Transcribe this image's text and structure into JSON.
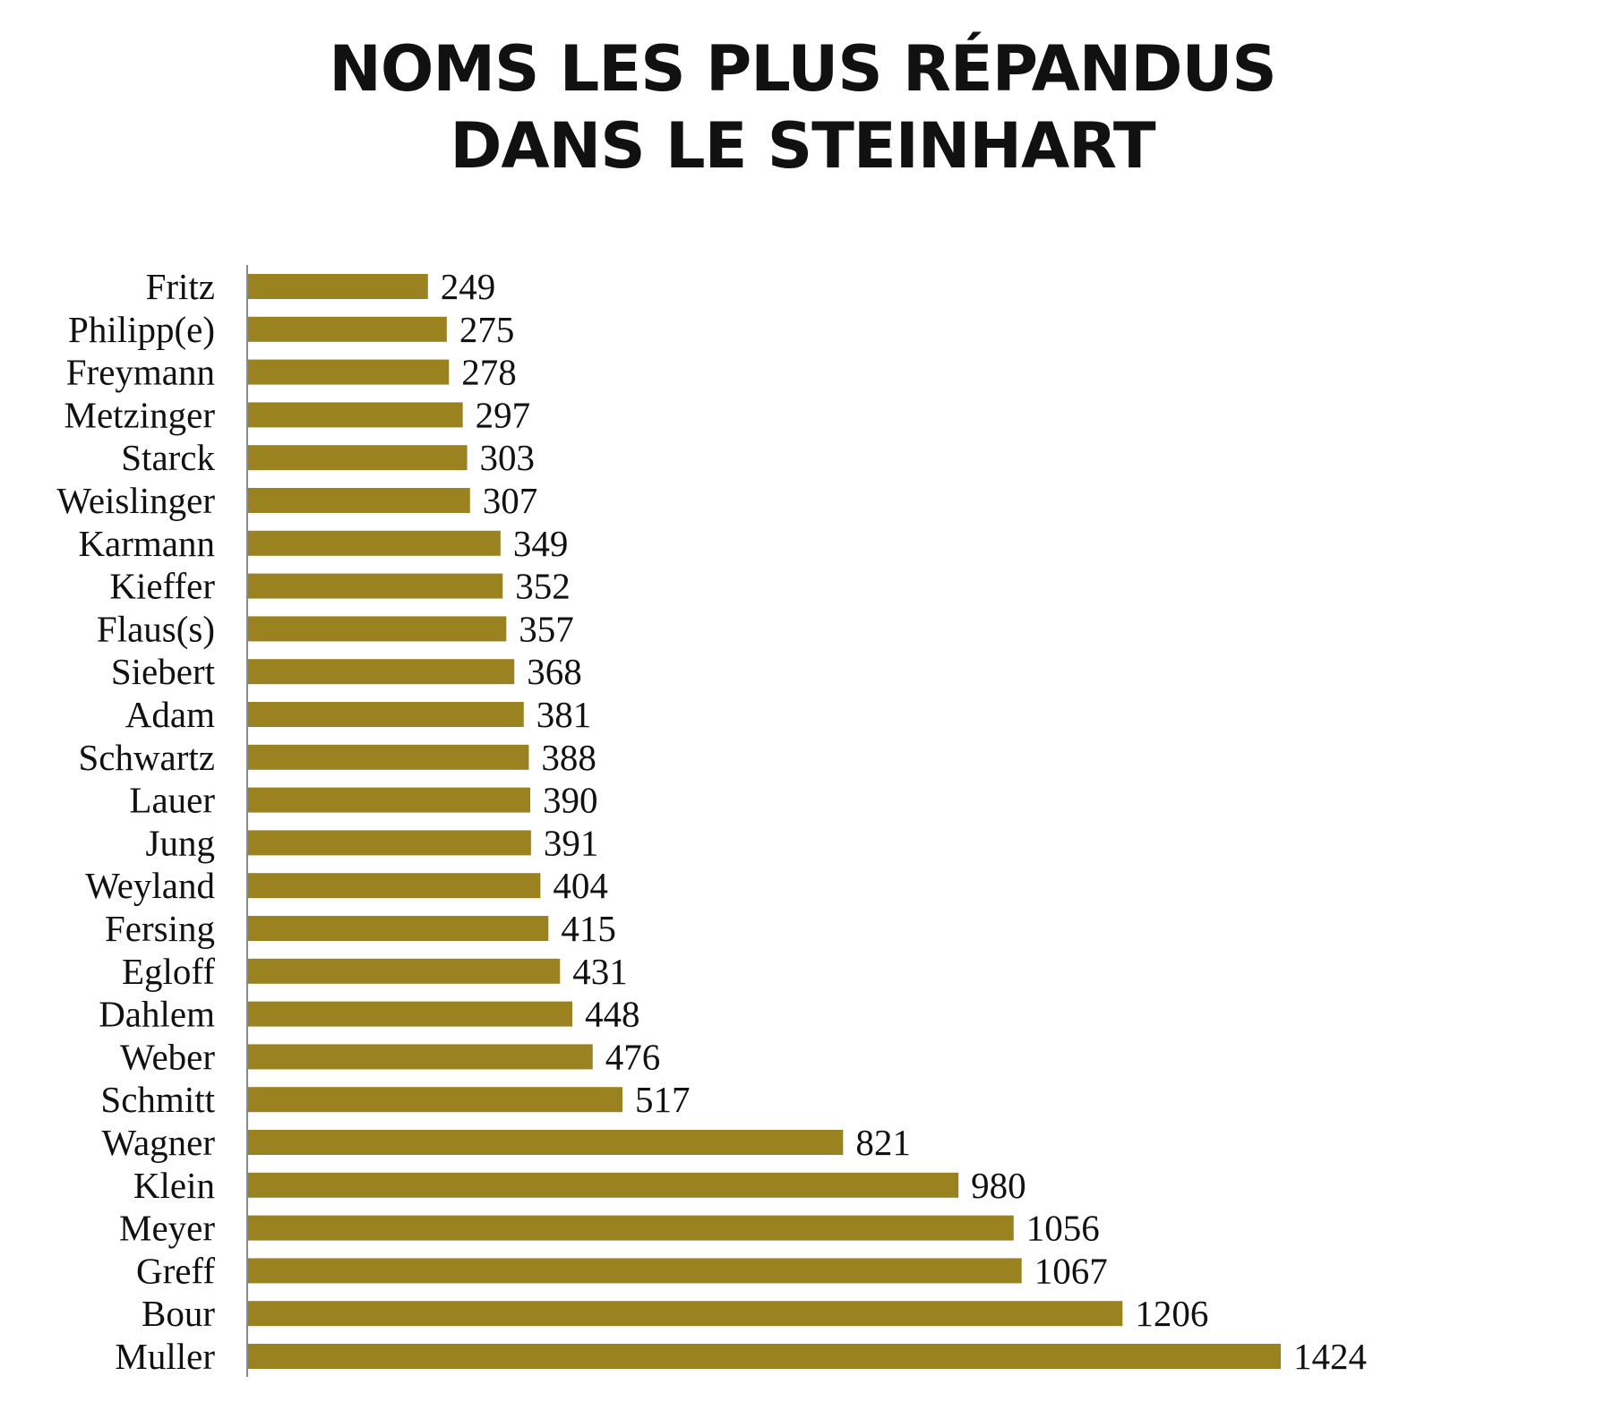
{
  "chart_data": {
    "type": "bar",
    "orientation": "horizontal",
    "title_lines": [
      "NOMS LES PLUS RÉPANDUS",
      "DANS LE STEINHART"
    ],
    "categories": [
      "Fritz",
      "Philipp(e)",
      "Freymann",
      "Metzinger",
      "Starck",
      "Weislinger",
      "Karmann",
      "Kieffer",
      "Flaus(s)",
      "Siebert",
      "Adam",
      "Schwartz",
      "Lauer",
      "Jung",
      "Weyland",
      "Fersing",
      "Egloff",
      "Dahlem",
      "Weber",
      "Schmitt",
      "Wagner",
      "Klein",
      "Meyer",
      "Greff",
      "Bour",
      "Muller"
    ],
    "values": [
      249,
      275,
      278,
      297,
      303,
      307,
      349,
      352,
      357,
      368,
      381,
      388,
      390,
      391,
      404,
      415,
      431,
      448,
      476,
      517,
      821,
      980,
      1056,
      1067,
      1206,
      1424
    ],
    "value_labels": [
      "249",
      "275",
      "278",
      "297",
      "303",
      "307",
      "349",
      "352",
      "357",
      "368",
      "381",
      "388",
      "390",
      "391",
      "404",
      "415",
      "431",
      "448",
      "476",
      "517",
      "821",
      "980",
      "1056",
      "1067",
      "1206",
      "1424"
    ],
    "xlim": [
      0,
      1424
    ],
    "bar_color": "#9b8220",
    "axis_color": "#8a8a8a",
    "grid": false,
    "legend": "none",
    "data_labels": "outside-end"
  }
}
